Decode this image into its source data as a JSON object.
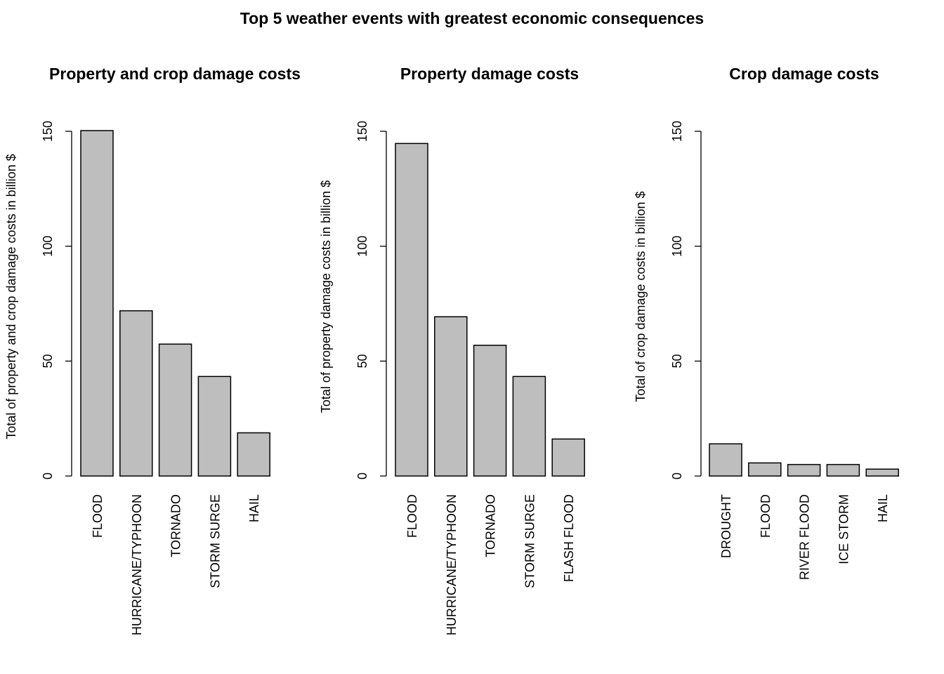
{
  "title": "Top 5 weather events with greatest economic consequences",
  "colors": {
    "bar_fill": "#bebebe",
    "bar_stroke": "#000000"
  },
  "chart_data": [
    {
      "type": "bar",
      "title": "Property and crop damage costs",
      "ylabel": "Total of property and crop damage costs in billion $",
      "xlabel": "",
      "ylim": [
        0,
        150
      ],
      "yticks": [
        "0",
        "50",
        "100",
        "150"
      ],
      "categories": [
        "FLOOD",
        "HURRICANE/TYPHOON",
        "TORNADO",
        "STORM SURGE",
        "HAIL"
      ],
      "values": [
        150.3,
        71.9,
        57.4,
        43.3,
        18.8
      ]
    },
    {
      "type": "bar",
      "title": "Property damage costs",
      "ylabel": "Total of property damage costs in billion $",
      "xlabel": "",
      "ylim": [
        0,
        150
      ],
      "yticks": [
        "0",
        "50",
        "100",
        "150"
      ],
      "categories": [
        "FLOOD",
        "HURRICANE/TYPHOON",
        "TORNADO",
        "STORM SURGE",
        "FLASH FLOOD"
      ],
      "values": [
        144.7,
        69.3,
        56.9,
        43.3,
        16.1
      ]
    },
    {
      "type": "bar",
      "title": "Crop damage costs",
      "ylabel": "Total of crop damage costs in billion $",
      "xlabel": "",
      "ylim": [
        0,
        150
      ],
      "yticks": [
        "0",
        "50",
        "100",
        "150"
      ],
      "categories": [
        "DROUGHT",
        "FLOOD",
        "RIVER FLOOD",
        "ICE STORM",
        "HAIL"
      ],
      "values": [
        14.0,
        5.7,
        5.0,
        5.0,
        3.0
      ]
    }
  ]
}
